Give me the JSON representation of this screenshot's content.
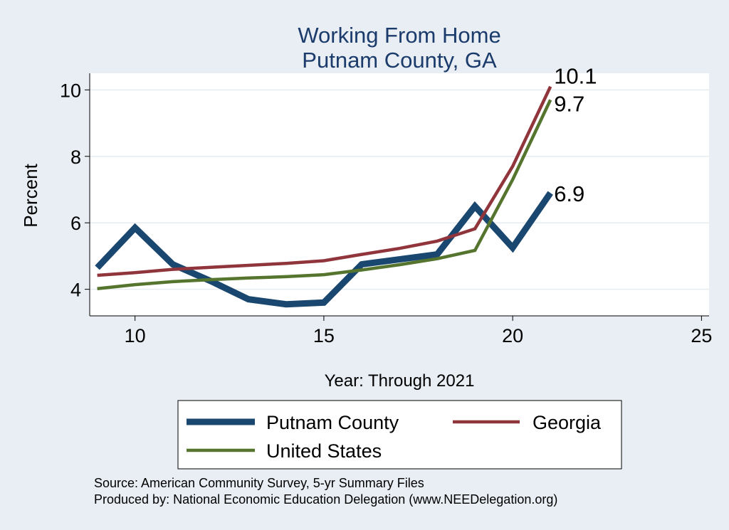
{
  "chart_data": {
    "type": "line",
    "title_lines": [
      "Working From Home",
      "Putnam County, GA"
    ],
    "xlabel": "Year: Through 2021",
    "ylabel": "Percent",
    "xlim": [
      8.8,
      25.2
    ],
    "ylim": [
      3.2,
      10.5
    ],
    "xticks": [
      10,
      15,
      20,
      25
    ],
    "yticks": [
      4,
      6,
      8,
      10
    ],
    "grid": true,
    "legend_position": "bottom",
    "series": [
      {
        "name": "Putnam County",
        "color": "#1a476f",
        "width": "thick",
        "x": [
          9,
          10,
          11,
          12,
          13,
          14,
          15,
          16,
          17,
          18,
          19,
          20,
          21
        ],
        "values": [
          4.65,
          5.85,
          4.75,
          4.25,
          3.7,
          3.55,
          3.6,
          4.75,
          4.9,
          5.05,
          6.5,
          5.25,
          6.9
        ],
        "end_label": "6.9"
      },
      {
        "name": "Georgia",
        "color": "#90353b",
        "width": "thin",
        "x": [
          9,
          10,
          11,
          12,
          13,
          14,
          15,
          16,
          17,
          18,
          19,
          20,
          21
        ],
        "values": [
          4.42,
          4.5,
          4.6,
          4.66,
          4.72,
          4.78,
          4.86,
          5.05,
          5.23,
          5.45,
          5.82,
          7.7,
          10.1
        ],
        "end_label": "10.1"
      },
      {
        "name": "United States",
        "color": "#55752f",
        "width": "thin",
        "x": [
          9,
          10,
          11,
          12,
          13,
          14,
          15,
          16,
          17,
          18,
          19,
          20,
          21
        ],
        "values": [
          4.02,
          4.14,
          4.23,
          4.29,
          4.34,
          4.38,
          4.44,
          4.58,
          4.74,
          4.92,
          5.17,
          7.3,
          9.7
        ],
        "end_label": "9.7"
      }
    ],
    "notes": [
      "Source: American Community Survey, 5-yr Summary Files",
      "Produced by: National Economic Education Delegation (www.NEEDelegation.org)"
    ]
  }
}
